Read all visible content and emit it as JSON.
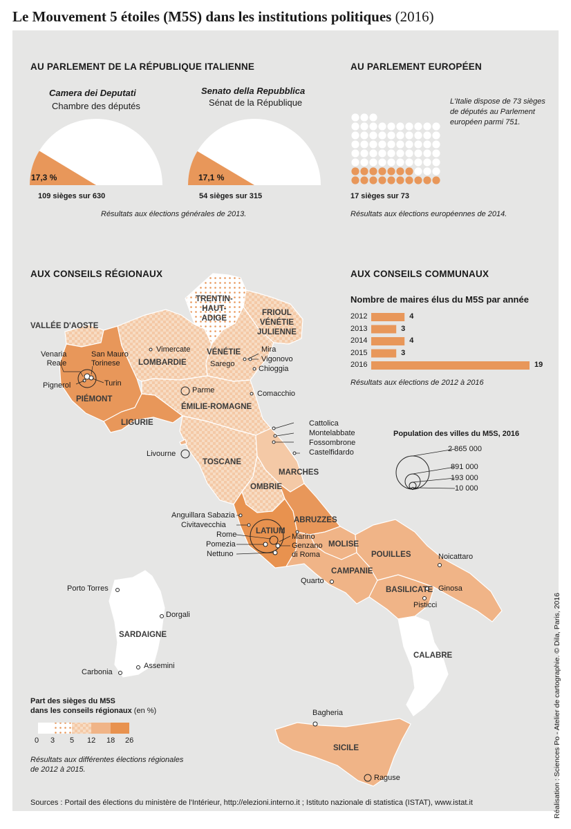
{
  "title": {
    "main": "Le Mouvement 5 étoiles (M5S) dans les institutions politiques",
    "year": "(2016)"
  },
  "italian_parliament": {
    "heading": "AU PARLEMENT DE LA RÉPUBLIQUE ITALIENNE",
    "camera": {
      "name_it": "Camera dei Deputati",
      "name_fr": "Chambre des députés",
      "percent_label": "17,3 %",
      "percent": 17.3,
      "seats_label": "109 sièges sur 630",
      "seats": 109,
      "total": 630
    },
    "senato": {
      "name_it": "Senato della Repubblica",
      "name_fr": "Sénat de la République",
      "percent_label": "17,1 %",
      "percent": 17.1,
      "seats_label": "54 sièges sur 315",
      "seats": 54,
      "total": 315
    },
    "source": "Résultats aux élections générales de 2013."
  },
  "european_parliament": {
    "heading": "AU PARLEMENT EUROPÉEN",
    "note_lines": [
      "L'Italie dispose de 73 sièges",
      "de députés au Parlement",
      "européen parmi 751."
    ],
    "seats_label": "17 sièges sur 73",
    "seats": 17,
    "total": 73,
    "source": "Résultats aux élections européennes de 2014."
  },
  "regional": {
    "heading": "AUX CONSEILS RÉGIONAUX",
    "legend_title_line1": "Part des sièges du M5S",
    "legend_title_line2": "dans les conseils régionaux",
    "legend_unit": "(en %)",
    "legend_ticks": [
      "0",
      "3",
      "5",
      "12",
      "18",
      "26"
    ],
    "source_line1": "Résultats aux différentes élections régionales",
    "source_line2": "de 2012 à 2015.",
    "regions": {
      "trentin_1": "TRENTIN-",
      "trentin_2": "HAUT-",
      "trentin_3": "ADIGE",
      "frioul_1": "FRIOUL",
      "frioul_2": "VÉNÉTIE",
      "frioul_3": "JULIENNE",
      "vallee": "VALLÉE D'AOSTE",
      "lombardie": "LOMBARDIE",
      "venetie": "VÉNÉTIE",
      "piemont": "PIÉMONT",
      "ligurie": "LIGURIE",
      "emilie": "ÉMILIE-ROMAGNE",
      "toscane": "TOSCANE",
      "marches": "MARCHES",
      "ombrie": "OMBRIE",
      "abruzzes": "ABRUZZES",
      "latium": "LATIUM",
      "molise": "MOLISE",
      "pouilles": "POUILLES",
      "campanie": "CAMPANIE",
      "basilicate": "BASILICATE",
      "calabre": "CALABRE",
      "sardaigne": "SARDAIGNE",
      "sicile": "SICILE"
    },
    "cities": {
      "venaria_1": "Venaria",
      "venaria_2": "Reale",
      "sanmauro_1": "San Mauro",
      "sanmauro_2": "Torinese",
      "pignerol": "Pignerol",
      "turin": "Turin",
      "vimercate": "Vimercate",
      "parme": "Parme",
      "mira": "Mira",
      "sarego": "Sarego",
      "vigonovo": "Vigonovo",
      "chioggia": "Chioggia",
      "comacchio": "Comacchio",
      "cattolica": "Cattolica",
      "montelabbate": "Montelabbate",
      "fossombrone": "Fossombrone",
      "castelfidardo": "Castelfidardo",
      "livourne": "Livourne",
      "anguillara": "Anguillara Sabazia",
      "civitavecchia": "Civitavecchia",
      "rome": "Rome",
      "pomezia": "Pomezia",
      "nettuno": "Nettuno",
      "marino": "Marino",
      "genzano_1": "Genzano",
      "genzano_2": "di Roma",
      "noicattaro": "Noicattaro",
      "quarto": "Quarto",
      "ginosa": "Ginosa",
      "pisticci": "Pisticci",
      "porto_torres": "Porto Torres",
      "dorgali": "Dorgali",
      "assemini": "Assemini",
      "carbonia": "Carbonia",
      "bagheria": "Bagheria",
      "raguse": "Raguse"
    }
  },
  "communal": {
    "heading": "AUX CONSEILS COMMUNAUX",
    "subtitle": "Nombre de maires élus du M5S par année",
    "source": "Résultats aux élections de 2012 à 2016",
    "population_title": "Population des villes du M5S, 2016",
    "population_labels": [
      "2 865 000",
      "891 000",
      "193 000",
      "10 000"
    ]
  },
  "chart_data": [
    {
      "type": "bar",
      "title": "Nombre de maires élus du M5S par année",
      "categories": [
        "2012",
        "2013",
        "2014",
        "2015",
        "2016"
      ],
      "values": [
        4,
        3,
        4,
        3,
        19
      ],
      "orientation": "horizontal"
    },
    {
      "type": "pie",
      "title": "Camera dei Deputati",
      "values": [
        17.3
      ],
      "labels": [
        "17,3 %"
      ],
      "shape": "semicircle"
    },
    {
      "type": "pie",
      "title": "Senato della Repubblica",
      "values": [
        17.1
      ],
      "labels": [
        "17,1 %"
      ],
      "shape": "semicircle"
    }
  ],
  "sources": "Sources : Portail des élections du ministère de l'Intérieur, http://elezioni.interno.it ; Istituto nazionale di statistica (ISTAT), www.istat.it",
  "credit": "Réalisation : Sciences Po - Atelier de cartographie. © Dila, Paris, 2016",
  "colors": {
    "accent": "#e8975a",
    "dark": "#e8924f",
    "mid": "#f0b487",
    "light": "#f4c9a6",
    "panel": "#e6e6e5"
  }
}
